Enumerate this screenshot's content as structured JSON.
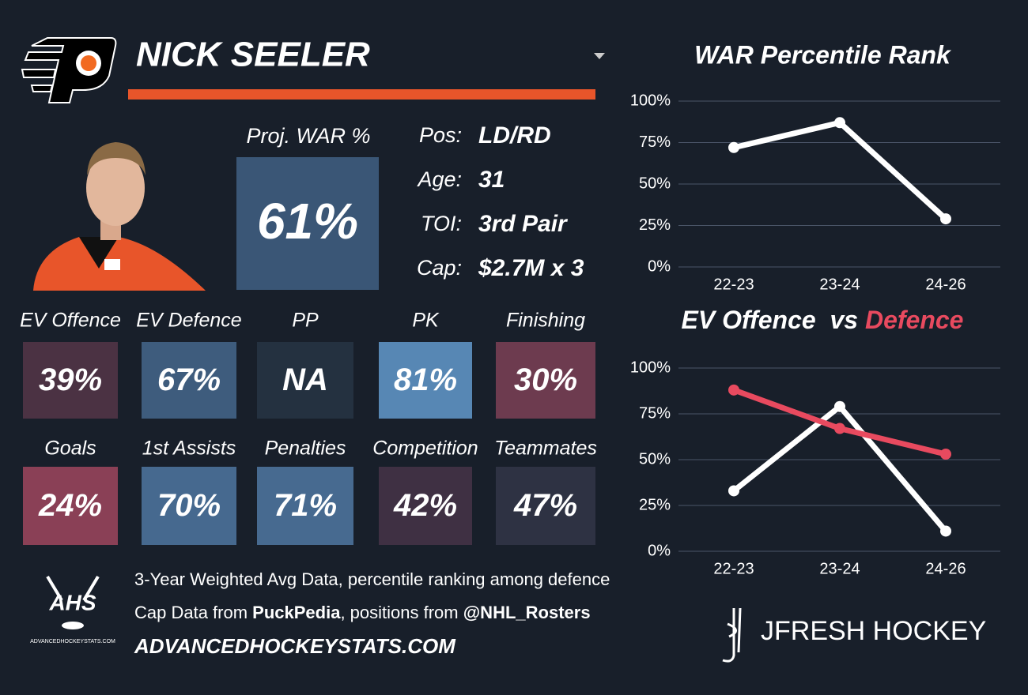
{
  "header": {
    "name": "NICK SEELER"
  },
  "proj_war": {
    "label": "Proj. WAR %",
    "value": "61%",
    "color": "#3a5676"
  },
  "bio": [
    {
      "label": "Pos:",
      "value": "LD/RD"
    },
    {
      "label": "Age:",
      "value": "31"
    },
    {
      "label": "TOI:",
      "value": "3rd Pair"
    },
    {
      "label": "Cap:",
      "value": "$2.7M x 3"
    }
  ],
  "tiles": [
    {
      "label": "EV Offence",
      "value": "39%",
      "color": "#4b3243"
    },
    {
      "label": "EV Defence",
      "value": "67%",
      "color": "#3e5c7d"
    },
    {
      "label": "PP",
      "value": "NA",
      "color": "#243140"
    },
    {
      "label": "PK",
      "value": "81%",
      "color": "#5787b4"
    },
    {
      "label": "Finishing",
      "value": "30%",
      "color": "#6d3b4f"
    },
    {
      "label": "Goals",
      "value": "24%",
      "color": "#8a4056"
    },
    {
      "label": "1st Assists",
      "value": "70%",
      "color": "#46698f"
    },
    {
      "label": "Penalties",
      "value": "71%",
      "color": "#476a90"
    },
    {
      "label": "Competition",
      "value": "42%",
      "color": "#3f3043"
    },
    {
      "label": "Teammates",
      "value": "47%",
      "color": "#2e3243"
    }
  ],
  "footer": {
    "line1": "3-Year Weighted Avg Data, percentile ranking among defence",
    "line2": [
      "Cap Data from ",
      "PuckPedia",
      ", positions from ",
      "@NHL_Rosters"
    ],
    "site": "ADVANCEDHOCKEYSTATS.COM"
  },
  "logos": {
    "ahs": "AHS",
    "ahs_site": "ADVANCEDHOCKEYSTATS.COM",
    "brand": "JFRESH HOCKEY"
  },
  "chart_data": [
    {
      "type": "line",
      "title": "WAR Percentile Rank",
      "categories": [
        "22-23",
        "23-24",
        "24-26"
      ],
      "values": [
        72,
        87,
        29
      ],
      "color": "#ffffff",
      "ylim": [
        0,
        100
      ],
      "yticks": [
        {
          "value": 0,
          "label": "0%"
        },
        {
          "value": 25,
          "label": "25%"
        },
        {
          "value": 50,
          "label": "50%"
        },
        {
          "value": 75,
          "label": "75%"
        },
        {
          "value": 100,
          "label": "100%"
        }
      ],
      "grid": true
    },
    {
      "type": "line",
      "title_connector": "vs",
      "categories": [
        "22-23",
        "23-24",
        "24-26"
      ],
      "series": [
        {
          "name": "EV Offence",
          "color": "#ffffff",
          "values": [
            33,
            79,
            11
          ]
        },
        {
          "name": "Defence",
          "color": "#e84a5f",
          "values": [
            88,
            67,
            53
          ]
        }
      ],
      "ylim": [
        0,
        100
      ],
      "yticks": [
        {
          "value": 0,
          "label": "0%"
        },
        {
          "value": 25,
          "label": "25%"
        },
        {
          "value": 50,
          "label": "50%"
        },
        {
          "value": 75,
          "label": "75%"
        },
        {
          "value": 100,
          "label": "100%"
        }
      ],
      "grid": true
    }
  ]
}
